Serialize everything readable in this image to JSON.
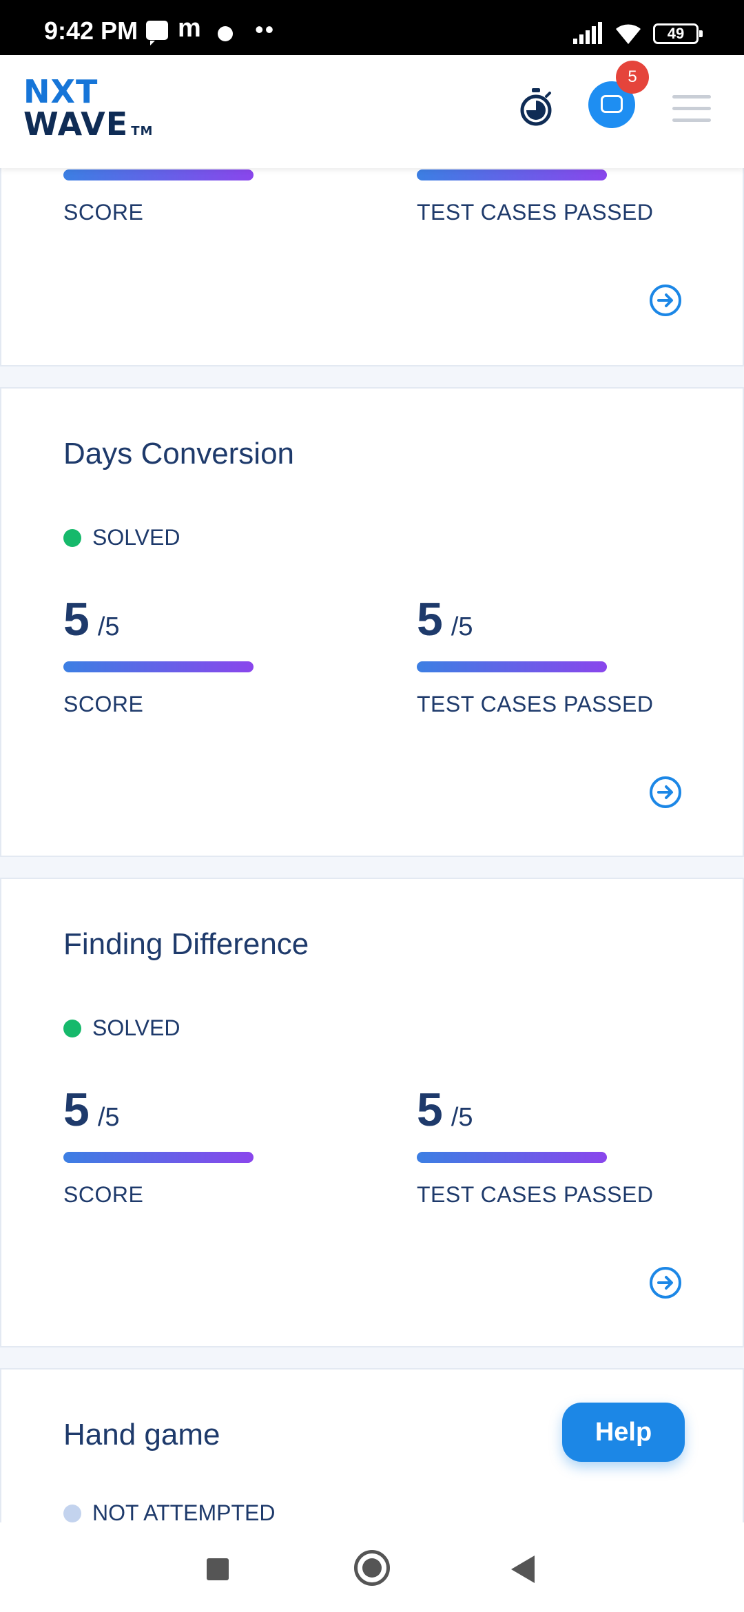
{
  "status_bar": {
    "time": "9:42 PM",
    "battery": "49"
  },
  "header": {
    "logo_line1": "NXT",
    "logo_line2": "WAVE",
    "logo_tm": "TM",
    "notification_count": "5"
  },
  "cards": [
    {
      "title": "",
      "status": "",
      "score_value": "",
      "score_total": "",
      "score_label": "SCORE",
      "tests_value": "",
      "tests_total": "",
      "tests_label": "TEST CASES PASSED"
    },
    {
      "title": "Days Conversion",
      "status": "SOLVED",
      "score_value": "5",
      "score_total": "/5",
      "score_label": "SCORE",
      "tests_value": "5",
      "tests_total": "/5",
      "tests_label": "TEST CASES PASSED"
    },
    {
      "title": "Finding Difference",
      "status": "SOLVED",
      "score_value": "5",
      "score_total": "/5",
      "score_label": "SCORE",
      "tests_value": "5",
      "tests_total": "/5",
      "tests_label": "TEST CASES PASSED"
    },
    {
      "title": "Hand game",
      "status": "NOT ATTEMPTED"
    }
  ],
  "help_label": "Help",
  "colors": {
    "primary": "#1c87e6",
    "solved": "#16b96b",
    "not_attempted": "#c3d3ee",
    "text": "#1e3a6b",
    "bar_start": "#3c7fe3",
    "bar_end": "#8a46ec"
  }
}
